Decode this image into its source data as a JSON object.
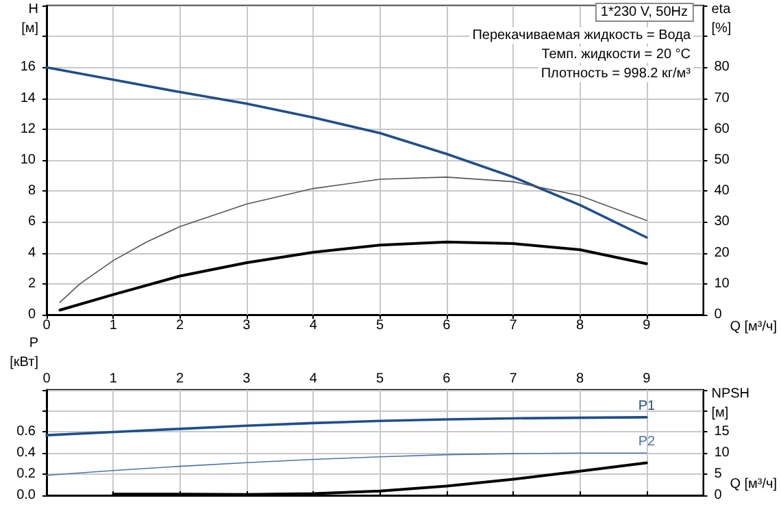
{
  "chart_data": [
    {
      "type": "line",
      "title": "1*230 V, 50Hz",
      "xlabel": "Q [м³/ч]",
      "ylabel": "H\n[м]",
      "y2label": "eta\n[%]",
      "annotations": [
        "Перекачиваемая жидкость = Вода",
        "Темп. жидкости = 20 °C",
        "Плотность = 998.2 кг/м³"
      ],
      "series": [
        {
          "color": "#1f4e8c",
          "x": [
            0,
            1,
            2,
            3,
            4,
            5,
            6,
            7,
            8,
            9
          ],
          "values": [
            16,
            15.2,
            14.4,
            13.65,
            12.75,
            11.75,
            10.4,
            8.9,
            7.1,
            5.0
          ]
        },
        {
          "color": "#555555",
          "axis": "y2",
          "x": [
            0.2,
            0.5,
            1,
            1.5,
            2,
            3,
            4,
            5,
            6,
            7,
            8,
            9
          ],
          "values": [
            4,
            10,
            17.5,
            23.5,
            28.5,
            35.8,
            40.8,
            43.8,
            44.5,
            43,
            38.5,
            30.5
          ]
        },
        {
          "color": "#000000",
          "axis": "y2",
          "x": [
            0.2,
            1,
            2,
            3,
            4,
            5,
            6,
            7,
            8,
            9
          ],
          "values": [
            1.5,
            6.5,
            12.5,
            16.8,
            20.2,
            22.5,
            23.5,
            23,
            21,
            16.5
          ]
        }
      ],
      "xlim": [
        0,
        9.85
      ],
      "xticks": [
        0,
        1,
        2,
        3,
        4,
        5,
        6,
        7,
        8,
        9
      ],
      "ylim": [
        0,
        20
      ],
      "yticks": [
        0,
        2,
        4,
        6,
        8,
        10,
        12,
        14,
        16,
        {
          "value": 18,
          "label": null
        },
        {
          "value": 20,
          "label": null
        }
      ],
      "y2lim": [
        0,
        100
      ],
      "y2ticks": [
        0,
        10,
        20,
        30,
        40,
        50,
        60,
        70,
        80,
        {
          "value": 90,
          "label": null
        },
        {
          "value": 100,
          "label": null
        }
      ],
      "grid": true,
      "legend": false,
      "marker": "none",
      "line_style": "solid"
    },
    {
      "type": "line",
      "xlabel": "Q [м³/ч]",
      "ylabel": "P\n[кВт]",
      "y2label": "NPSH\n[м]",
      "series": [
        {
          "name": "P1",
          "color": "#1f4e8c",
          "x": [
            0,
            1,
            2,
            3,
            4,
            5,
            6,
            7,
            8,
            9
          ],
          "values": [
            0.57,
            0.6,
            0.63,
            0.66,
            0.685,
            0.705,
            0.72,
            0.73,
            0.735,
            0.74
          ]
        },
        {
          "name": "P2",
          "color": "#4a74ad",
          "x": [
            0,
            1,
            2,
            3,
            4,
            5,
            6,
            7,
            8,
            9
          ],
          "values": [
            0.19,
            0.235,
            0.275,
            0.31,
            0.34,
            0.365,
            0.385,
            0.395,
            0.4,
            0.4
          ]
        },
        {
          "color": "#000000",
          "axis": "y2",
          "x": [
            1,
            2,
            3,
            4,
            5,
            6,
            7,
            8,
            9
          ],
          "values": [
            0.3,
            0.3,
            0.2,
            0.4,
            1.0,
            2.2,
            3.8,
            5.7,
            7.7
          ]
        }
      ],
      "xlim": [
        0,
        9.85
      ],
      "xticks": [
        0,
        1,
        2,
        3,
        4,
        5,
        6,
        7,
        8,
        9
      ],
      "ylim": [
        0,
        1
      ],
      "yticks": [
        {
          "value": 0,
          "label": "0.0"
        },
        0.2,
        0.4,
        0.6,
        {
          "value": 0.8,
          "label": null
        },
        {
          "value": 1,
          "label": null
        }
      ],
      "y2lim": [
        0,
        25
      ],
      "y2ticks": [
        0,
        5,
        10,
        15,
        {
          "value": 20,
          "label": null
        },
        {
          "value": 25,
          "label": null
        }
      ],
      "grid": true,
      "legend": false,
      "marker": "none",
      "line_style": "solid"
    }
  ]
}
